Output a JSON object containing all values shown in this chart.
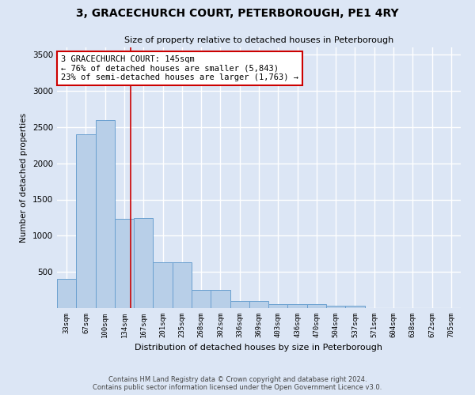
{
  "title": "3, GRACECHURCH COURT, PETERBOROUGH, PE1 4RY",
  "subtitle": "Size of property relative to detached houses in Peterborough",
  "xlabel": "Distribution of detached houses by size in Peterborough",
  "ylabel": "Number of detached properties",
  "footer_line1": "Contains HM Land Registry data © Crown copyright and database right 2024.",
  "footer_line2": "Contains public sector information licensed under the Open Government Licence v3.0.",
  "categories": [
    "33sqm",
    "67sqm",
    "100sqm",
    "134sqm",
    "167sqm",
    "201sqm",
    "235sqm",
    "268sqm",
    "302sqm",
    "336sqm",
    "369sqm",
    "403sqm",
    "436sqm",
    "470sqm",
    "504sqm",
    "537sqm",
    "571sqm",
    "604sqm",
    "638sqm",
    "672sqm",
    "705sqm"
  ],
  "values": [
    400,
    2400,
    2600,
    1230,
    1240,
    630,
    630,
    250,
    250,
    100,
    100,
    60,
    60,
    60,
    30,
    30,
    0,
    0,
    0,
    0,
    0
  ],
  "bar_color": "#b8cfe8",
  "bar_edge_color": "#6aa0d0",
  "background_color": "#dce6f5",
  "grid_color": "#ffffff",
  "annotation_box_text": "3 GRACECHURCH COURT: 145sqm\n← 76% of detached houses are smaller (5,843)\n23% of semi-detached houses are larger (1,763) →",
  "vline_x": 3.33,
  "vline_color": "#cc0000",
  "ylim": [
    0,
    3600
  ],
  "yticks": [
    0,
    500,
    1000,
    1500,
    2000,
    2500,
    3000,
    3500
  ]
}
